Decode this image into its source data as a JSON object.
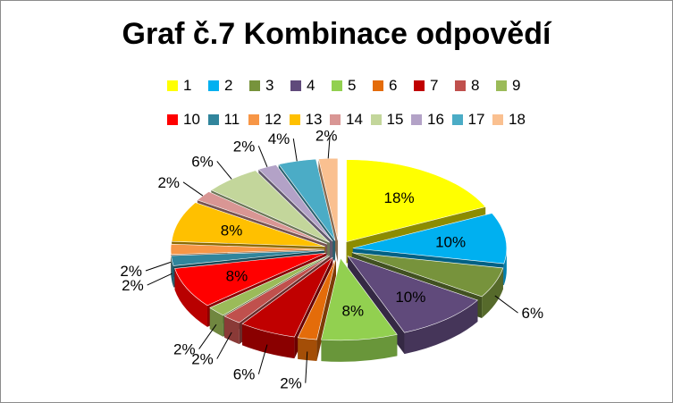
{
  "chart_data": {
    "type": "pie",
    "title": "Graf č.7 Kombinace odpovědí",
    "categories": [
      "1",
      "2",
      "3",
      "4",
      "5",
      "6",
      "7",
      "8",
      "9",
      "10",
      "11",
      "12",
      "13",
      "14",
      "15",
      "16",
      "17",
      "18"
    ],
    "values": [
      18,
      10,
      6,
      10,
      8,
      2,
      6,
      2,
      2,
      8,
      2,
      2,
      8,
      2,
      6,
      2,
      4,
      2
    ],
    "value_labels": [
      "18%",
      "10%",
      "6%",
      "10%",
      "8%",
      "2%",
      "6%",
      "2%",
      "2%",
      "8%",
      "2%",
      "2%",
      "8%",
      "2%",
      "6%",
      "2%",
      "4%",
      "2%"
    ],
    "colors": [
      "#ffff00",
      "#00b0f0",
      "#77933c",
      "#604a7b",
      "#92d050",
      "#e46c0a",
      "#c00000",
      "#c0504d",
      "#9bbb59",
      "#ff0000",
      "#31859c",
      "#f79646",
      "#ffc000",
      "#d99694",
      "#c3d69b",
      "#b3a2c7",
      "#4bacc6",
      "#fac090"
    ],
    "legend_position": "top",
    "exploded": true,
    "style_3d": true
  }
}
